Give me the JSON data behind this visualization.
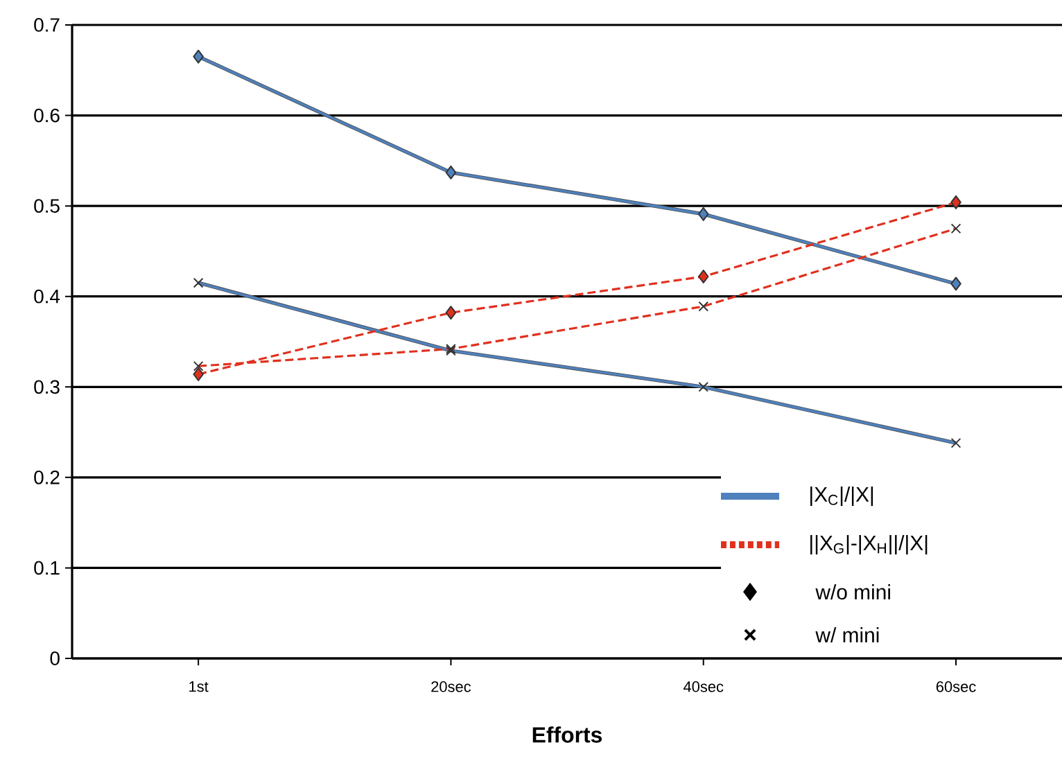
{
  "chart_data": {
    "type": "line",
    "xlabel": "Efforts",
    "categories": [
      "1st",
      "20sec",
      "40sec",
      "60sec"
    ],
    "series": [
      {
        "color": "#4f81bd",
        "marker": "diamond",
        "line_style": "solid",
        "values": [
          0.665,
          0.537,
          0.491,
          0.414
        ]
      },
      {
        "color": "#4f81bd",
        "marker": "cross",
        "line_style": "solid",
        "values": [
          0.415,
          0.34,
          0.3,
          0.238
        ]
      },
      {
        "color": "#e0301e",
        "marker": "diamond",
        "line_style": "dashed",
        "values": [
          0.314,
          0.382,
          0.422,
          0.504
        ]
      },
      {
        "color": "#e0301e",
        "marker": "cross",
        "line_style": "dashed",
        "values": [
          0.323,
          0.342,
          0.389,
          0.475
        ]
      }
    ],
    "ylim": [
      0,
      0.7
    ],
    "yticks": [
      0,
      0.1,
      0.2,
      0.3,
      0.4,
      0.5,
      0.6,
      0.7
    ],
    "grid": "y",
    "annotations": [
      "|X$_{C}$|/|X|",
      "||X$_{G}$|-|X$_{H}$||/|X|",
      "w/o  mini",
      "w/  mini"
    ]
  }
}
